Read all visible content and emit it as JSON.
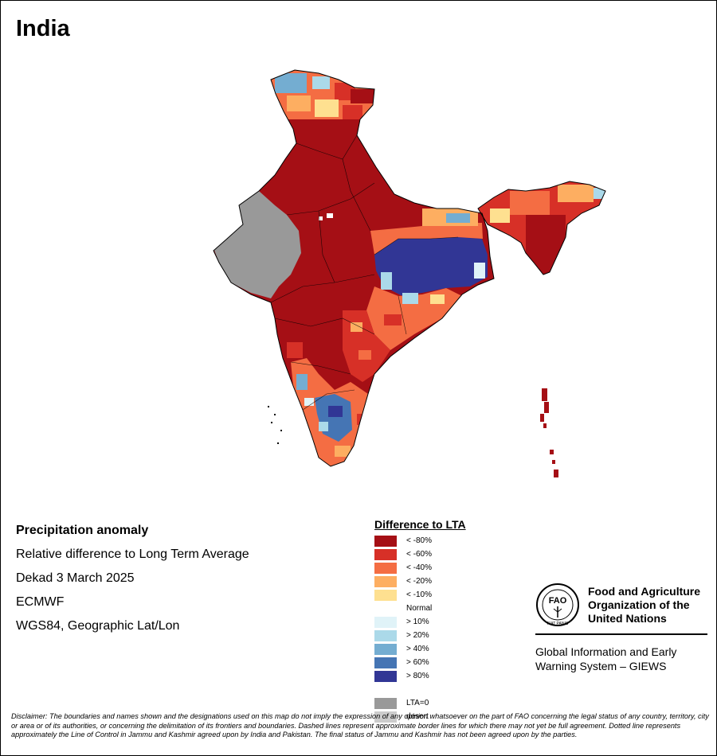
{
  "title": "India",
  "meta": {
    "heading": "Precipitation anomaly",
    "lines": [
      "Relative difference to Long Term Average",
      "Dekad 3 March 2025",
      "ECMWF",
      "WGS84, Geographic Lat/Lon"
    ]
  },
  "legend": {
    "title": "Difference to LTA",
    "items": [
      {
        "label": "< -80%",
        "color": "#a50f15"
      },
      {
        "label": "< -60%",
        "color": "#d73027"
      },
      {
        "label": "< -40%",
        "color": "#f46d43"
      },
      {
        "label": "< -20%",
        "color": "#fdae61"
      },
      {
        "label": "< -10%",
        "color": "#fee090"
      },
      {
        "label": "Normal",
        "color": "#ffffff"
      },
      {
        "label": "> 10%",
        "color": "#e0f3f8"
      },
      {
        "label": "> 20%",
        "color": "#abd9e9"
      },
      {
        "label": "> 40%",
        "color": "#74add1"
      },
      {
        "label": "> 60%",
        "color": "#4575b4"
      },
      {
        "label": "> 80%",
        "color": "#313695"
      },
      {
        "label": "",
        "color": ""
      },
      {
        "label": "LTA=0",
        "color": "#999999"
      },
      {
        "label": "desert",
        "color": "#cccccc"
      }
    ]
  },
  "org": {
    "logo_text": "FAO",
    "logo_ring_text": "FIAT PANIS",
    "name_lines": [
      "Food and Agriculture",
      "Organization of the",
      "United Nations"
    ],
    "system_lines": [
      "Global Information and Early",
      "Warning System – GIEWS"
    ]
  },
  "disclaimer": "Disclaimer: The boundaries and names shown and the designations used on this map do not imply the expression of any opinion whatsoever on the part of FAO concerning the legal status of any country, territory, city or area or of its authorities, or concerning the delimitation of its frontiers and boundaries. Dashed lines represent approximate border lines for which there may not yet be full agreement. Dotted line represents approximately the Line of Control in Jammu and Kashmir agreed upon by India and Pakistan. The final status of Jammu and Kashmir has not been agreed upon by the parties."
}
